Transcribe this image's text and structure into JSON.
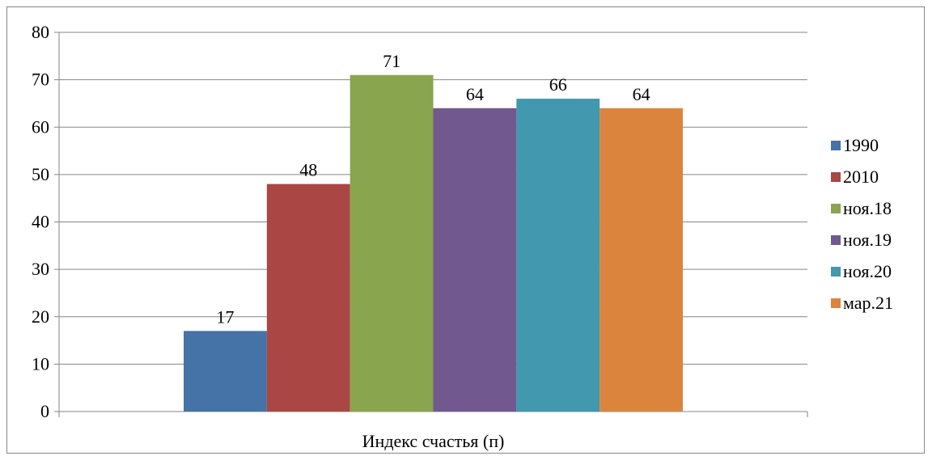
{
  "chart_data": {
    "type": "bar",
    "categories": [
      "Индекс счастья (п)"
    ],
    "series": [
      {
        "name": "1990",
        "values": [
          17
        ],
        "color": "#4572A7"
      },
      {
        "name": "2010",
        "values": [
          48
        ],
        "color": "#AA4643"
      },
      {
        "name": "ноя.18",
        "values": [
          71
        ],
        "color": "#89A54E"
      },
      {
        "name": "ноя.19",
        "values": [
          64
        ],
        "color": "#71588F"
      },
      {
        "name": "ноя.20",
        "values": [
          66
        ],
        "color": "#4198AF"
      },
      {
        "name": "мар.21",
        "values": [
          64
        ],
        "color": "#DB843D"
      }
    ],
    "ylim": [
      0,
      80
    ],
    "yticks": [
      0,
      10,
      20,
      30,
      40,
      50,
      60,
      70,
      80
    ],
    "grid": true,
    "legend": "right",
    "data_labels": true
  }
}
